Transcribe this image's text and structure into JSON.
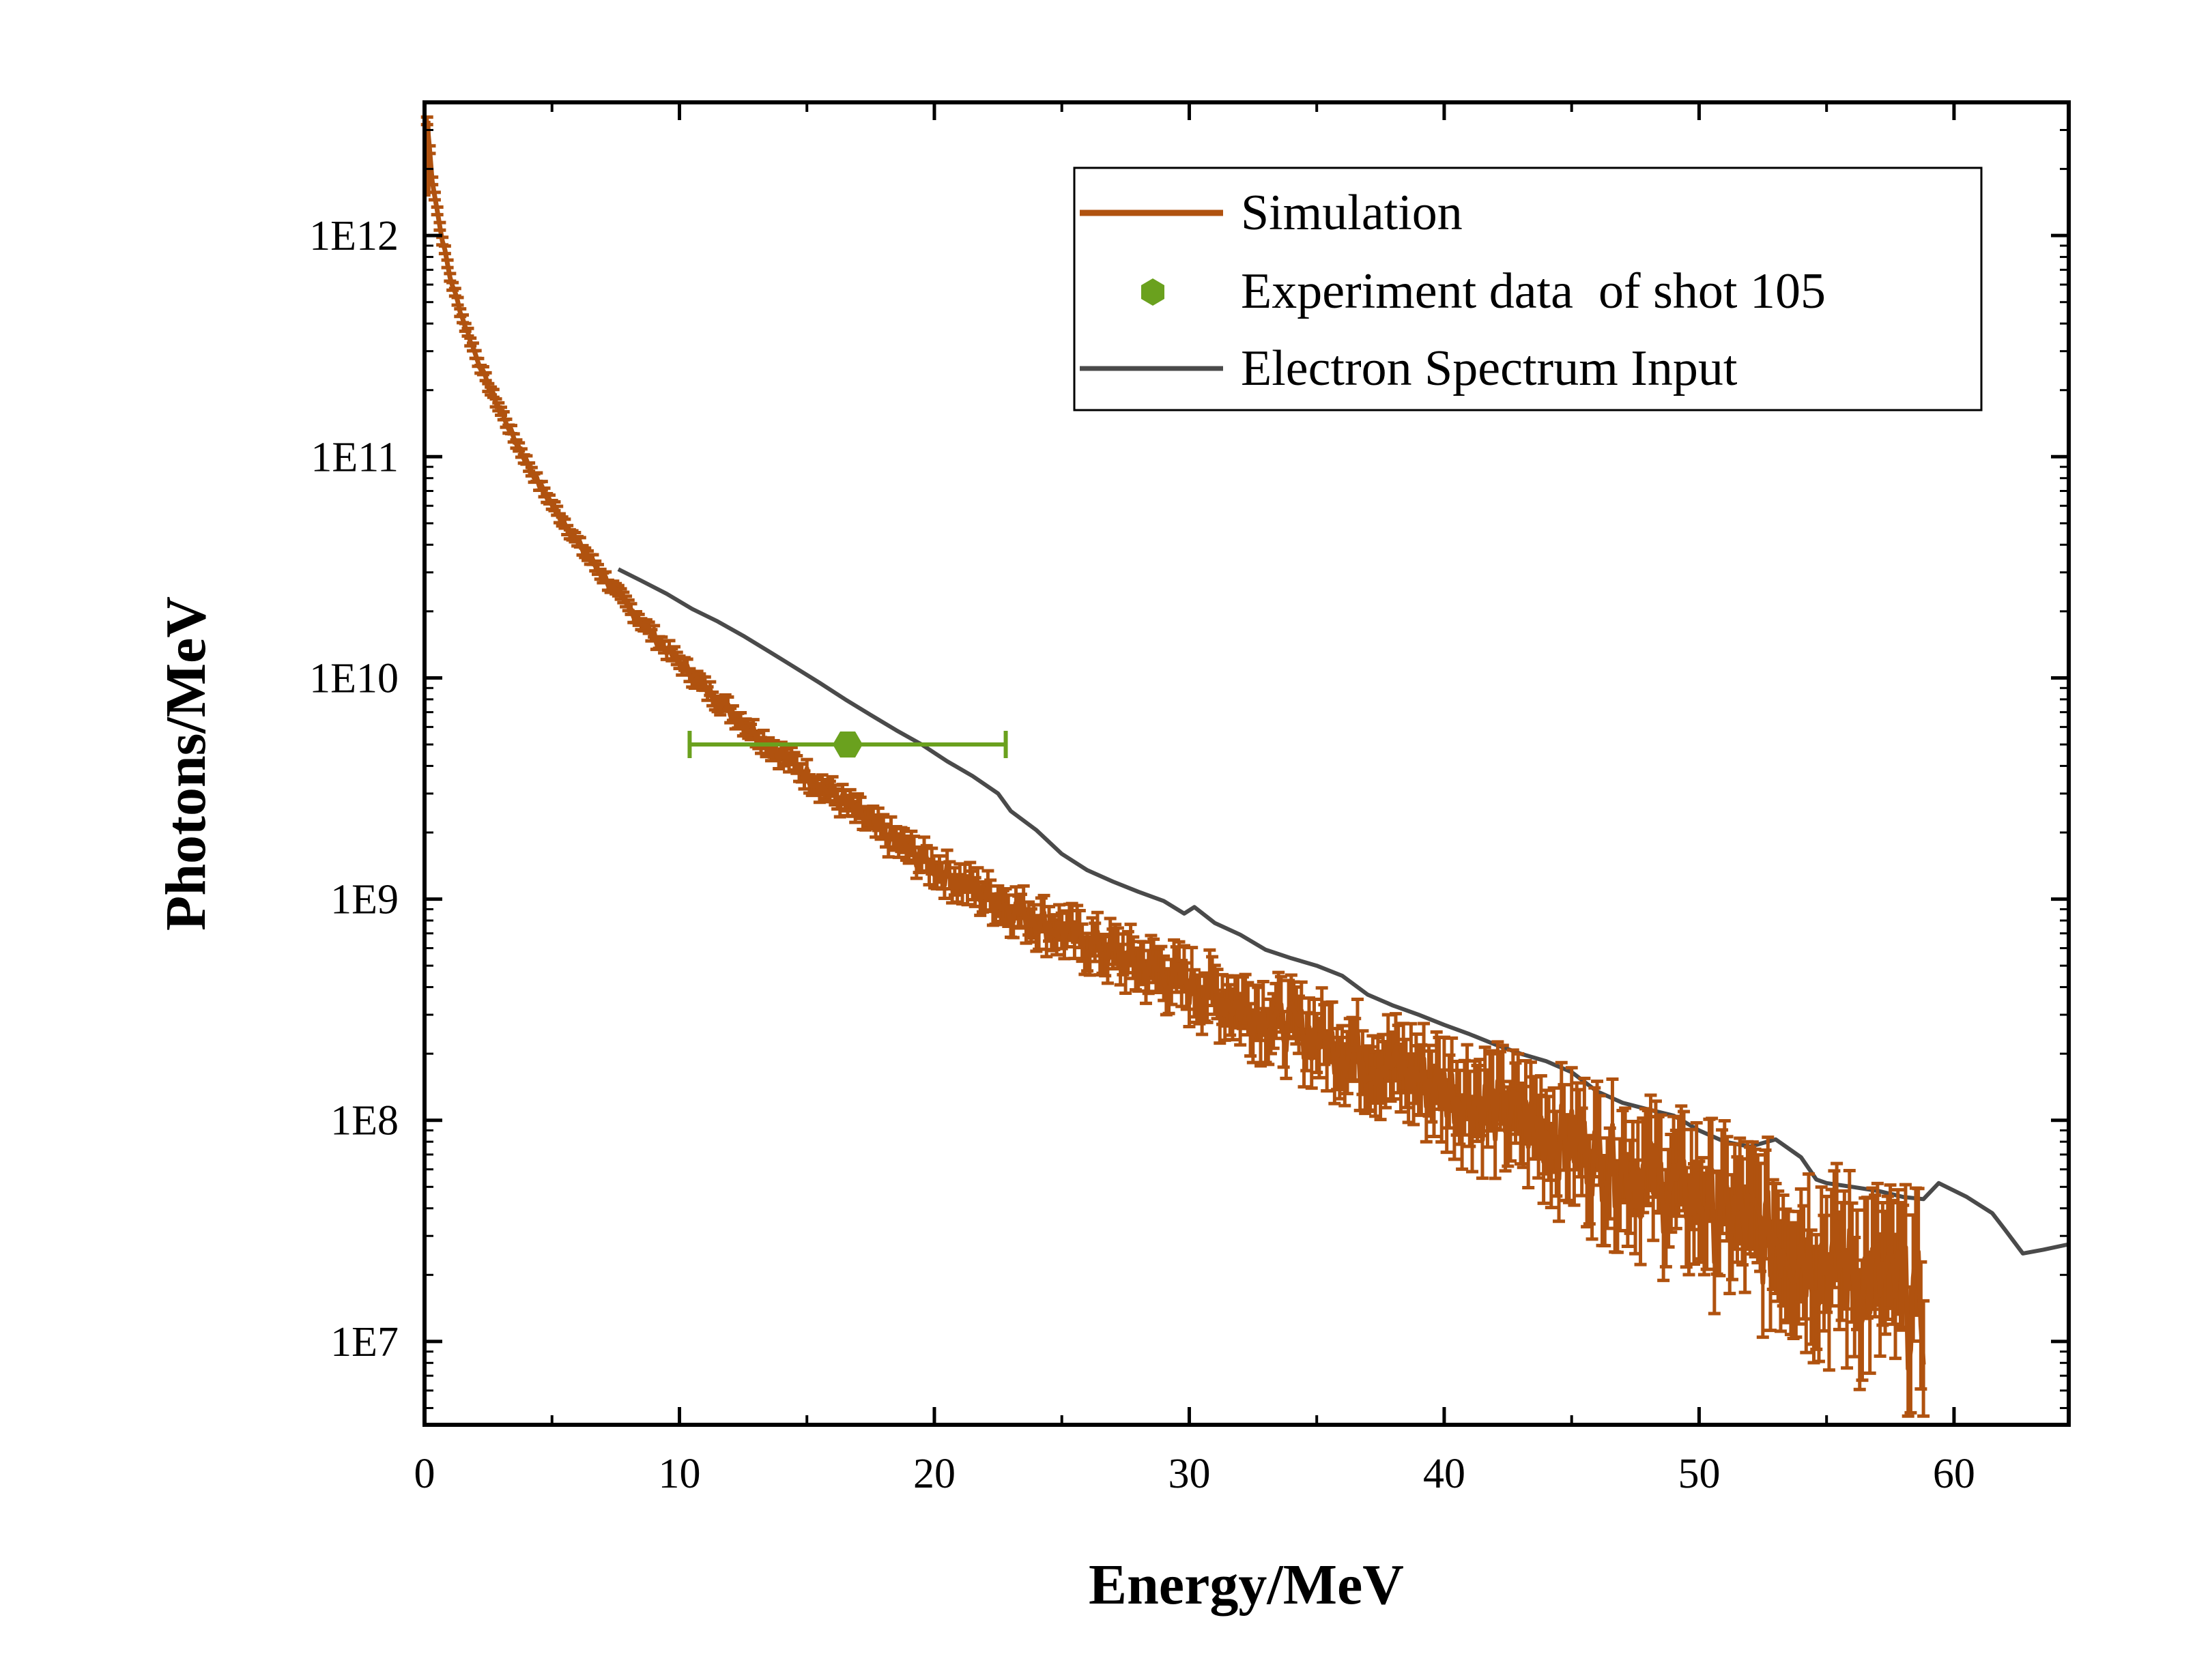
{
  "chart_data": {
    "type": "line",
    "title": "",
    "xlabel": "Energy/MeV",
    "ylabel": "Photons/MeV",
    "xlim": [
      0,
      64.5
    ],
    "ylim": [
      4200000.0,
      4000000000000.0
    ],
    "yscale": "log",
    "x_ticks": [
      0,
      10,
      20,
      30,
      40,
      50,
      60
    ],
    "x_tick_labels": [
      "0",
      "10",
      "20",
      "30",
      "40",
      "50",
      "60"
    ],
    "y_ticks": [
      10000000.0,
      100000000.0,
      1000000000.0,
      10000000000.0,
      100000000000.0,
      1000000000000.0
    ],
    "y_tick_labels": [
      "1E7",
      "1E8",
      "1E9",
      "1E10",
      "1E11",
      "1E12"
    ],
    "grid": false,
    "legend_position": "top-right",
    "colors": {
      "simulation": "#b0520f",
      "experiment": "#6aa11e",
      "electron": "#4a4a4a"
    },
    "series": [
      {
        "name": "Simulation",
        "kind": "line-with-errorbars",
        "color": "#b0520f",
        "points": [
          [
            0.1,
            3300000000000.0
          ],
          [
            0.3,
            1800000000000.0
          ],
          [
            0.6,
            1100000000000.0
          ],
          [
            1.0,
            650000000000.0
          ],
          [
            1.5,
            420000000000.0
          ],
          [
            2.0,
            290000000000.0
          ],
          [
            2.5,
            210000000000.0
          ],
          [
            3.0,
            160000000000.0
          ],
          [
            3.5,
            122000000000.0
          ],
          [
            4.0,
            95000000000.0
          ],
          [
            4.5,
            75000000000.0
          ],
          [
            5.0,
            61000000000.0
          ],
          [
            5.5,
            50000000000.0
          ],
          [
            6.0,
            41000000000.0
          ],
          [
            6.5,
            34500000000.0
          ],
          [
            7.0,
            29000000000.0
          ],
          [
            7.5,
            24500000000.0
          ],
          [
            8.0,
            21000000000.0
          ],
          [
            8.5,
            18000000000.0
          ],
          [
            9.0,
            15500000000.0
          ],
          [
            9.5,
            13500000000.0
          ],
          [
            10.0,
            11800000000.0
          ],
          [
            10.5,
            10300000000.0
          ],
          [
            11.0,
            9000000000.0
          ],
          [
            11.5,
            8000000000.0
          ],
          [
            12.0,
            7100000000.0
          ],
          [
            12.5,
            6300000000.0
          ],
          [
            13.0,
            5600000000.0
          ],
          [
            13.5,
            5000000000.0
          ],
          [
            14.0,
            4500000000.0
          ],
          [
            14.5,
            4050000000.0
          ],
          [
            15.0,
            3650000000.0
          ],
          [
            15.5,
            3300000000.0
          ],
          [
            16.0,
            3000000000.0
          ],
          [
            16.5,
            2700000000.0
          ],
          [
            17.0,
            2450000000.0
          ],
          [
            17.5,
            2200000000.0
          ],
          [
            18.0,
            2000000000.0
          ],
          [
            18.5,
            1820000000.0
          ],
          [
            19.0,
            1670000000.0
          ],
          [
            19.5,
            1520000000.0
          ],
          [
            20.0,
            1400000000.0
          ],
          [
            21.0,
            1200000000.0
          ],
          [
            22.0,
            1050000000.0
          ],
          [
            23.0,
            920000000.0
          ],
          [
            24.0,
            810000000.0
          ],
          [
            25.0,
            720000000.0
          ],
          [
            26.0,
            640000000.0
          ],
          [
            27.0,
            570000000.0
          ],
          [
            28.0,
            510000000.0
          ],
          [
            29.0,
            460000000.0
          ],
          [
            30.0,
            410000000.0
          ],
          [
            31.0,
            370000000.0
          ],
          [
            32.0,
            330000000.0
          ],
          [
            33.0,
            300000000.0
          ],
          [
            34.0,
            270000000.0
          ],
          [
            35.0,
            240000000.0
          ],
          [
            36.0,
            215000000.0
          ],
          [
            37.0,
            195000000.0
          ],
          [
            38.0,
            175000000.0
          ],
          [
            39.0,
            158000000.0
          ],
          [
            40.0,
            142000000.0
          ],
          [
            41.0,
            128000000.0
          ],
          [
            42.0,
            115000000.0
          ],
          [
            43.0,
            103000000.0
          ],
          [
            44.0,
            92000000.0
          ],
          [
            45.0,
            82000000.0
          ],
          [
            46.0,
            73000000.0
          ],
          [
            47.0,
            65000000.0
          ],
          [
            48.0,
            58000000.0
          ],
          [
            49.0,
            51000000.0
          ],
          [
            50.0,
            45000000.0
          ],
          [
            51.0,
            40000000.0
          ],
          [
            52.0,
            35000000.0
          ],
          [
            53.0,
            31000000.0
          ],
          [
            54.0,
            27500000.0
          ],
          [
            55.0,
            24500000.0
          ],
          [
            56.0,
            22000000.0
          ],
          [
            57.0,
            19500000.0
          ],
          [
            58.0,
            17500000.0
          ],
          [
            58.8,
            16000000.0
          ]
        ]
      },
      {
        "name": "Experiment data  of shot 105",
        "kind": "point-with-xerror",
        "color": "#6aa11e",
        "points": [
          {
            "x": 16.6,
            "y": 5000000000.0,
            "xerr_low": 10.4,
            "xerr_high": 22.8
          }
        ]
      },
      {
        "name": "Electron Spectrum Input",
        "kind": "line",
        "color": "#4a4a4a",
        "points": [
          [
            7.6,
            31000000000.0
          ],
          [
            8.5,
            27500000000.0
          ],
          [
            9.5,
            24000000000.0
          ],
          [
            10.5,
            20500000000.0
          ],
          [
            11.5,
            18000000000.0
          ],
          [
            12.5,
            15500000000.0
          ],
          [
            13.5,
            13200000000.0
          ],
          [
            14.5,
            11200000000.0
          ],
          [
            15.5,
            9500000000.0
          ],
          [
            16.5,
            8000000000.0
          ],
          [
            17.5,
            6800000000.0
          ],
          [
            18.5,
            5800000000.0
          ],
          [
            19.5,
            5000000000.0
          ],
          [
            20.5,
            4200000000.0
          ],
          [
            21.5,
            3600000000.0
          ],
          [
            22.5,
            3000000000.0
          ],
          [
            23.0,
            2500000000.0
          ],
          [
            24.0,
            2050000000.0
          ],
          [
            25.0,
            1600000000.0
          ],
          [
            26.0,
            1350000000.0
          ],
          [
            27.0,
            1200000000.0
          ],
          [
            28.0,
            1080000000.0
          ],
          [
            29.0,
            980000000.0
          ],
          [
            29.8,
            860000000.0
          ],
          [
            30.2,
            920000000.0
          ],
          [
            31.0,
            780000000.0
          ],
          [
            32.0,
            690000000.0
          ],
          [
            33.0,
            590000000.0
          ],
          [
            34.0,
            540000000.0
          ],
          [
            35.0,
            500000000.0
          ],
          [
            36.0,
            450000000.0
          ],
          [
            37.0,
            370000000.0
          ],
          [
            38.0,
            330000000.0
          ],
          [
            39.0,
            300000000.0
          ],
          [
            40.0,
            270000000.0
          ],
          [
            41.0,
            245000000.0
          ],
          [
            42.0,
            220000000.0
          ],
          [
            43.0,
            200000000.0
          ],
          [
            44.0,
            185000000.0
          ],
          [
            45.0,
            165000000.0
          ],
          [
            46.0,
            135000000.0
          ],
          [
            47.0,
            120000000.0
          ],
          [
            48.0,
            112000000.0
          ],
          [
            49.0,
            105000000.0
          ],
          [
            50.0,
            90000000.0
          ],
          [
            51.0,
            80000000.0
          ],
          [
            52.0,
            76000000.0
          ],
          [
            53.0,
            82000000.0
          ],
          [
            54.0,
            68000000.0
          ],
          [
            54.6,
            54000000.0
          ],
          [
            55.0,
            52000000.0
          ],
          [
            56.0,
            50000000.0
          ],
          [
            57.0,
            48000000.0
          ],
          [
            58.0,
            45000000.0
          ],
          [
            58.8,
            44000000.0
          ],
          [
            59.4,
            52000000.0
          ],
          [
            60.5,
            45000000.0
          ],
          [
            61.5,
            38000000.0
          ],
          [
            62.0,
            32000000.0
          ],
          [
            62.7,
            25000000.0
          ],
          [
            63.5,
            26000000.0
          ],
          [
            64.5,
            27500000.0
          ]
        ]
      }
    ]
  }
}
